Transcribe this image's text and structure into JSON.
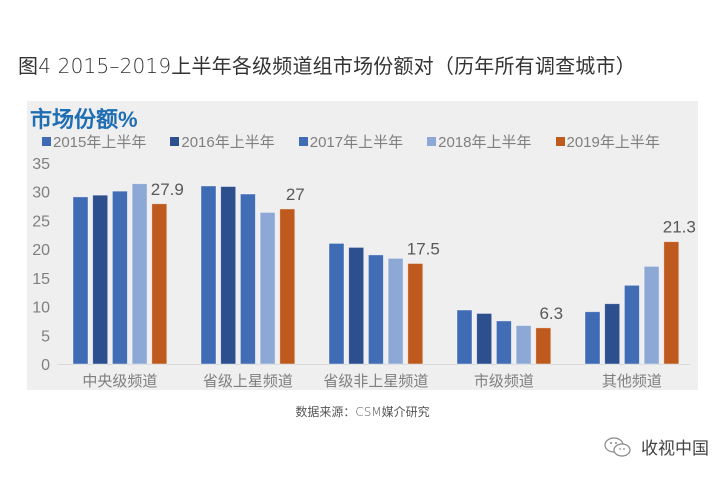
{
  "figure_title": "图4  2015–2019上半年各级频道组市场份额对（历年所有调查城市）",
  "source_note": "数据来源：CSM媒介研究",
  "watermark": {
    "icon": "wechat-icon",
    "text": "收视中国"
  },
  "chart_data": {
    "type": "bar",
    "title": "市场份额%",
    "xlabel": "",
    "ylabel": "市场份额%",
    "ylim": [
      0,
      35
    ],
    "yticks": [
      0,
      5,
      10,
      15,
      20,
      25,
      30,
      35
    ],
    "grid": false,
    "legend_position": "top",
    "categories": [
      "中央级频道",
      "省级上星频道",
      "省级非上星频道",
      "市级频道",
      "其他频道"
    ],
    "series": [
      {
        "name": "2015年上半年",
        "color": "#3f6bb5",
        "values": [
          29.1,
          31.0,
          21.0,
          9.4,
          9.1
        ]
      },
      {
        "name": "2016年上半年",
        "color": "#2d4f8e",
        "values": [
          29.4,
          30.9,
          20.3,
          8.8,
          10.5
        ]
      },
      {
        "name": "2017年上半年",
        "color": "#416db5",
        "values": [
          30.1,
          29.6,
          19.0,
          7.5,
          13.7
        ]
      },
      {
        "name": "2018年上半年",
        "color": "#8ea8d6",
        "values": [
          31.4,
          26.4,
          18.4,
          6.7,
          17.0
        ]
      },
      {
        "name": "2019年上半年",
        "color": "#bf5a1f",
        "values": [
          27.9,
          27.0,
          17.5,
          6.3,
          21.3
        ]
      }
    ],
    "data_labels": [
      {
        "series": "2019年上半年",
        "category": "中央级频道",
        "text": "27.9"
      },
      {
        "series": "2019年上半年",
        "category": "省级上星频道",
        "text": "27"
      },
      {
        "series": "2019年上半年",
        "category": "省级非上星频道",
        "text": "17.5"
      },
      {
        "series": "2019年上半年",
        "category": "市级频道",
        "text": "6.3"
      },
      {
        "series": "2019年上半年",
        "category": "其他频道",
        "text": "21.3"
      }
    ]
  }
}
